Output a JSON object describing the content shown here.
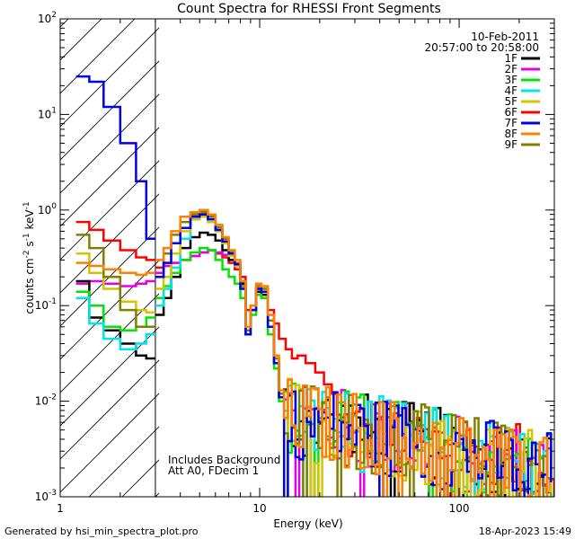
{
  "chart_data": {
    "type": "line",
    "title": "Count Spectra for RHESSI Front Segments",
    "xlabel": "Energy (keV)",
    "ylabel": "counts cm^-2 s^-1 keV^-1",
    "xscale": "log",
    "yscale": "log",
    "xlim": [
      1,
      300
    ],
    "ylim": [
      0.001,
      100
    ],
    "x_ticks": [
      {
        "value": 1,
        "label": "1"
      },
      {
        "value": 10,
        "label": "10"
      },
      {
        "value": 100,
        "label": "100"
      }
    ],
    "y_ticks": [
      {
        "value": 0.001,
        "base": "10",
        "exp": "-3"
      },
      {
        "value": 0.01,
        "base": "10",
        "exp": "-2"
      },
      {
        "value": 0.1,
        "base": "10",
        "exp": "-1"
      },
      {
        "value": 1,
        "base": "10",
        "exp": "0"
      },
      {
        "value": 10,
        "base": "10",
        "exp": "1"
      },
      {
        "value": 100,
        "base": "10",
        "exp": "2"
      }
    ],
    "excluded_region_max_kev": 3,
    "date": "10-Feb-2011",
    "time_range": "20:57:00 to 20:58:00",
    "annotation_lines": [
      "Includes Background",
      "Att A0, FDecim 1"
    ],
    "series": [
      {
        "name": "1F",
        "color": "#000000",
        "start": [
          [
            1.2,
            0.18
          ],
          [
            1.4,
            0.075
          ],
          [
            1.65,
            0.055
          ],
          [
            2.0,
            0.04
          ],
          [
            2.4,
            0.03
          ],
          [
            2.7,
            0.028
          ]
        ],
        "core": [
          [
            3.0,
            0.08
          ],
          [
            3.3,
            0.12
          ],
          [
            3.6,
            0.2
          ],
          [
            4.0,
            0.4
          ],
          [
            4.5,
            0.52
          ],
          [
            5.0,
            0.58
          ],
          [
            5.5,
            0.55
          ],
          [
            6.0,
            0.48
          ],
          [
            6.5,
            0.38
          ],
          [
            7.0,
            0.3
          ],
          [
            7.5,
            0.26
          ],
          [
            8.0,
            0.17
          ],
          [
            8.5,
            0.05
          ],
          [
            9.0,
            0.09
          ],
          [
            9.6,
            0.14
          ],
          [
            10.2,
            0.13
          ],
          [
            11.0,
            0.06
          ],
          [
            11.8,
            0.025
          ],
          [
            12.5,
            0.011
          ]
        ]
      },
      {
        "name": "2F",
        "color": "#e600e6",
        "start": [
          [
            1.2,
            0.17
          ],
          [
            1.4,
            0.18
          ],
          [
            1.65,
            0.17
          ],
          [
            2.0,
            0.16
          ],
          [
            2.4,
            0.17
          ],
          [
            2.7,
            0.18
          ]
        ],
        "core": [
          [
            3.0,
            0.22
          ],
          [
            3.3,
            0.26
          ],
          [
            3.6,
            0.28
          ],
          [
            4.0,
            0.3
          ],
          [
            4.5,
            0.33
          ],
          [
            5.0,
            0.36
          ],
          [
            5.5,
            0.38
          ],
          [
            6.0,
            0.36
          ],
          [
            6.5,
            0.34
          ],
          [
            7.0,
            0.3
          ],
          [
            7.5,
            0.27
          ],
          [
            8.0,
            0.18
          ],
          [
            8.5,
            0.06
          ],
          [
            9.0,
            0.1
          ],
          [
            9.6,
            0.15
          ],
          [
            10.2,
            0.14
          ],
          [
            11.0,
            0.07
          ],
          [
            11.8,
            0.028
          ],
          [
            12.5,
            0.012
          ]
        ]
      },
      {
        "name": "3F",
        "color": "#00e600",
        "start": [
          [
            1.2,
            0.14
          ],
          [
            1.4,
            0.1
          ],
          [
            1.65,
            0.06
          ],
          [
            2.0,
            0.055
          ],
          [
            2.4,
            0.06
          ],
          [
            2.7,
            0.075
          ]
        ],
        "core": [
          [
            3.0,
            0.12
          ],
          [
            3.3,
            0.16
          ],
          [
            3.6,
            0.22
          ],
          [
            4.0,
            0.3
          ],
          [
            4.5,
            0.36
          ],
          [
            5.0,
            0.4
          ],
          [
            5.5,
            0.38
          ],
          [
            6.0,
            0.3
          ],
          [
            6.5,
            0.24
          ],
          [
            7.0,
            0.2
          ],
          [
            7.5,
            0.17
          ],
          [
            8.0,
            0.12
          ],
          [
            8.5,
            0.05
          ],
          [
            9.0,
            0.08
          ],
          [
            9.6,
            0.13
          ],
          [
            10.2,
            0.12
          ],
          [
            11.0,
            0.05
          ],
          [
            11.8,
            0.022
          ],
          [
            12.5,
            0.01
          ]
        ]
      },
      {
        "name": "4F",
        "color": "#00e6e6",
        "start": [
          [
            1.2,
            0.12
          ],
          [
            1.4,
            0.065
          ],
          [
            1.65,
            0.045
          ],
          [
            2.0,
            0.035
          ],
          [
            2.4,
            0.04
          ],
          [
            2.7,
            0.05
          ]
        ],
        "core": [
          [
            3.0,
            0.1
          ],
          [
            3.3,
            0.15
          ],
          [
            3.6,
            0.25
          ],
          [
            4.0,
            0.5
          ],
          [
            4.5,
            0.8
          ],
          [
            5.0,
            0.9
          ],
          [
            5.5,
            0.75
          ],
          [
            6.0,
            0.6
          ],
          [
            6.5,
            0.45
          ],
          [
            7.0,
            0.33
          ],
          [
            7.5,
            0.26
          ],
          [
            8.0,
            0.15
          ],
          [
            8.5,
            0.05
          ],
          [
            9.0,
            0.09
          ],
          [
            9.6,
            0.15
          ],
          [
            10.2,
            0.14
          ],
          [
            11.0,
            0.06
          ],
          [
            11.8,
            0.025
          ],
          [
            12.5,
            0.011
          ]
        ]
      },
      {
        "name": "5F",
        "color": "#d4c400",
        "start": [
          [
            1.2,
            0.35
          ],
          [
            1.4,
            0.22
          ],
          [
            1.65,
            0.15
          ],
          [
            2.0,
            0.11
          ],
          [
            2.4,
            0.09
          ],
          [
            2.7,
            0.085
          ]
        ],
        "core": [
          [
            3.0,
            0.15
          ],
          [
            3.3,
            0.2
          ],
          [
            3.6,
            0.35
          ],
          [
            4.0,
            0.6
          ],
          [
            4.5,
            0.8
          ],
          [
            5.0,
            0.85
          ],
          [
            5.5,
            0.75
          ],
          [
            6.0,
            0.6
          ],
          [
            6.5,
            0.45
          ],
          [
            7.0,
            0.33
          ],
          [
            7.5,
            0.26
          ],
          [
            8.0,
            0.15
          ],
          [
            8.5,
            0.055
          ],
          [
            9.0,
            0.1
          ],
          [
            9.6,
            0.16
          ],
          [
            10.2,
            0.15
          ],
          [
            11.0,
            0.07
          ],
          [
            11.8,
            0.028
          ],
          [
            12.5,
            0.012
          ]
        ]
      },
      {
        "name": "6F",
        "color": "#ff0000",
        "start": [
          [
            1.2,
            0.75
          ],
          [
            1.4,
            0.62
          ],
          [
            1.65,
            0.48
          ],
          [
            2.0,
            0.38
          ],
          [
            2.4,
            0.32
          ],
          [
            2.7,
            0.3
          ]
        ],
        "core": [
          [
            3.0,
            0.25
          ],
          [
            3.3,
            0.26
          ],
          [
            3.6,
            0.28
          ],
          [
            4.0,
            0.3
          ],
          [
            4.5,
            0.33
          ],
          [
            5.0,
            0.36
          ],
          [
            5.5,
            0.38
          ],
          [
            6.0,
            0.35
          ],
          [
            6.5,
            0.32
          ],
          [
            7.0,
            0.28
          ],
          [
            7.5,
            0.24
          ],
          [
            8.0,
            0.2
          ],
          [
            8.5,
            0.09
          ],
          [
            9.0,
            0.1
          ],
          [
            9.6,
            0.13
          ],
          [
            10.2,
            0.12
          ],
          [
            11.0,
            0.09
          ],
          [
            11.8,
            0.065
          ],
          [
            12.5,
            0.045
          ],
          [
            13.5,
            0.035
          ],
          [
            14.5,
            0.028
          ],
          [
            15.5,
            0.03
          ],
          [
            17.0,
            0.025
          ],
          [
            19.0,
            0.02
          ],
          [
            21.0,
            0.015
          ],
          [
            23.0,
            0.012
          ]
        ]
      },
      {
        "name": "7F",
        "color": "#0000e6",
        "start": [
          [
            1.2,
            25
          ],
          [
            1.4,
            22
          ],
          [
            1.65,
            12
          ],
          [
            2.0,
            5
          ],
          [
            2.4,
            2
          ],
          [
            2.7,
            0.5
          ]
        ],
        "core": [
          [
            3.0,
            0.2
          ],
          [
            3.3,
            0.28
          ],
          [
            3.6,
            0.45
          ],
          [
            4.0,
            0.65
          ],
          [
            4.5,
            0.85
          ],
          [
            5.0,
            0.9
          ],
          [
            5.5,
            0.8
          ],
          [
            6.0,
            0.62
          ],
          [
            6.5,
            0.47
          ],
          [
            7.0,
            0.35
          ],
          [
            7.5,
            0.27
          ],
          [
            8.0,
            0.15
          ],
          [
            8.5,
            0.05
          ],
          [
            9.0,
            0.09
          ],
          [
            9.6,
            0.15
          ],
          [
            10.2,
            0.14
          ],
          [
            11.0,
            0.06
          ],
          [
            11.8,
            0.025
          ],
          [
            12.5,
            0.011
          ]
        ]
      },
      {
        "name": "8F",
        "color": "#ff8000",
        "start": [
          [
            1.2,
            0.28
          ],
          [
            1.4,
            0.26
          ],
          [
            1.65,
            0.24
          ],
          [
            2.0,
            0.22
          ],
          [
            2.4,
            0.21
          ],
          [
            2.7,
            0.22
          ]
        ],
        "core": [
          [
            3.0,
            0.3
          ],
          [
            3.3,
            0.4
          ],
          [
            3.6,
            0.6
          ],
          [
            4.0,
            0.85
          ],
          [
            4.5,
            0.95
          ],
          [
            5.0,
            1.0
          ],
          [
            5.5,
            0.9
          ],
          [
            6.0,
            0.7
          ],
          [
            6.5,
            0.52
          ],
          [
            7.0,
            0.38
          ],
          [
            7.5,
            0.3
          ],
          [
            8.0,
            0.18
          ],
          [
            8.5,
            0.06
          ],
          [
            9.0,
            0.1
          ],
          [
            9.6,
            0.17
          ],
          [
            10.2,
            0.16
          ],
          [
            11.0,
            0.08
          ],
          [
            11.8,
            0.03
          ],
          [
            12.5,
            0.013
          ]
        ]
      },
      {
        "name": "9F",
        "color": "#808000",
        "start": [
          [
            1.2,
            0.55
          ],
          [
            1.4,
            0.4
          ],
          [
            1.65,
            0.2
          ],
          [
            2.0,
            0.09
          ],
          [
            2.4,
            0.06
          ],
          [
            2.7,
            0.06
          ]
        ],
        "core": [
          [
            3.0,
            0.2
          ],
          [
            3.3,
            0.35
          ],
          [
            3.6,
            0.55
          ],
          [
            4.0,
            0.75
          ],
          [
            4.5,
            0.9
          ],
          [
            5.0,
            0.95
          ],
          [
            5.5,
            0.85
          ],
          [
            6.0,
            0.66
          ],
          [
            6.5,
            0.5
          ],
          [
            7.0,
            0.37
          ],
          [
            7.5,
            0.28
          ],
          [
            8.0,
            0.16
          ],
          [
            8.5,
            0.055
          ],
          [
            9.0,
            0.1
          ],
          [
            9.6,
            0.16
          ],
          [
            10.2,
            0.15
          ],
          [
            11.0,
            0.07
          ],
          [
            11.8,
            0.028
          ],
          [
            12.5,
            0.012
          ]
        ]
      }
    ],
    "noise_tail": {
      "from_kev": 13,
      "to_kev": 300,
      "level_at_from": 0.007,
      "level_at_to": 0.0018,
      "floor": 0.001
    }
  },
  "footer": {
    "generated_by": "Generated by hsi_min_spectra_plot.pro",
    "timestamp": "18-Apr-2023 15:49"
  }
}
